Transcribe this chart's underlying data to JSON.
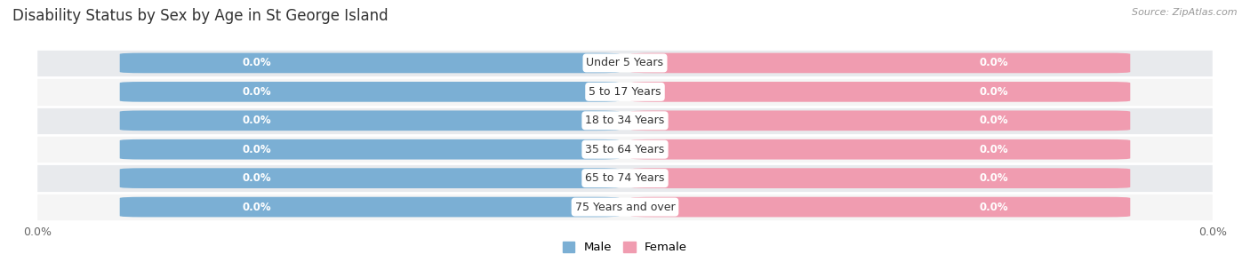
{
  "title": "Disability Status by Sex by Age in St George Island",
  "source": "Source: ZipAtlas.com",
  "categories": [
    "Under 5 Years",
    "5 to 17 Years",
    "18 to 34 Years",
    "35 to 64 Years",
    "65 to 74 Years",
    "75 Years and over"
  ],
  "male_values": [
    0.0,
    0.0,
    0.0,
    0.0,
    0.0,
    0.0
  ],
  "female_values": [
    0.0,
    0.0,
    0.0,
    0.0,
    0.0,
    0.0
  ],
  "male_color": "#7bafd4",
  "female_color": "#f09cb0",
  "row_bg_color": "#e8eaed",
  "row_bg_color2": "#f5f5f5",
  "title_fontsize": 12,
  "label_fontsize": 9,
  "value_fontsize": 8.5,
  "tick_fontsize": 9,
  "figsize": [
    14.06,
    3.04
  ],
  "dpi": 100
}
